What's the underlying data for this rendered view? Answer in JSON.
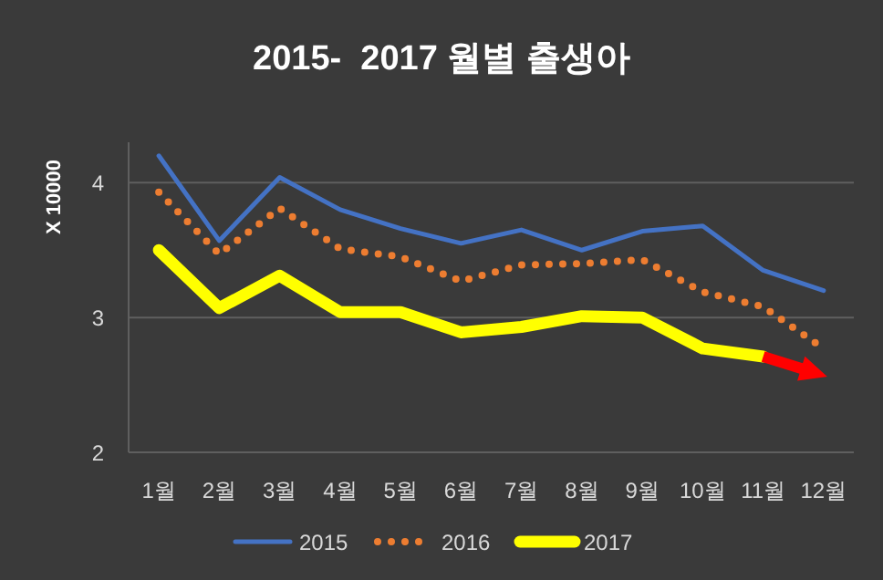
{
  "chart_data": {
    "type": "line",
    "title": "2015-  2017 월별 출생아",
    "ylabel": "X 10000",
    "categories": [
      "1월",
      "2월",
      "3월",
      "4월",
      "5월",
      "6월",
      "7월",
      "8월",
      "9월",
      "10월",
      "11월",
      "12월"
    ],
    "series": [
      {
        "name": "2015",
        "color": "#4472c4",
        "line_style": "solid",
        "values": [
          4.2,
          3.57,
          4.04,
          3.8,
          3.66,
          3.55,
          3.65,
          3.5,
          3.64,
          3.68,
          3.35,
          3.2
        ]
      },
      {
        "name": "2016",
        "color": "#ed7d31",
        "line_style": "dotted",
        "values": [
          3.93,
          3.47,
          3.81,
          3.51,
          3.45,
          3.27,
          3.39,
          3.4,
          3.43,
          3.19,
          3.08,
          2.77
        ]
      },
      {
        "name": "2017",
        "color": "#ffff00",
        "line_style": "solid",
        "values": [
          3.5,
          3.07,
          3.31,
          3.04,
          3.04,
          2.89,
          2.93,
          3.01,
          3.0,
          2.77,
          2.71,
          null
        ]
      }
    ],
    "ylim": [
      2,
      4.3
    ],
    "yticks": [
      2,
      3,
      4
    ],
    "grid": "y",
    "legend": "bottom",
    "marker": "none"
  }
}
